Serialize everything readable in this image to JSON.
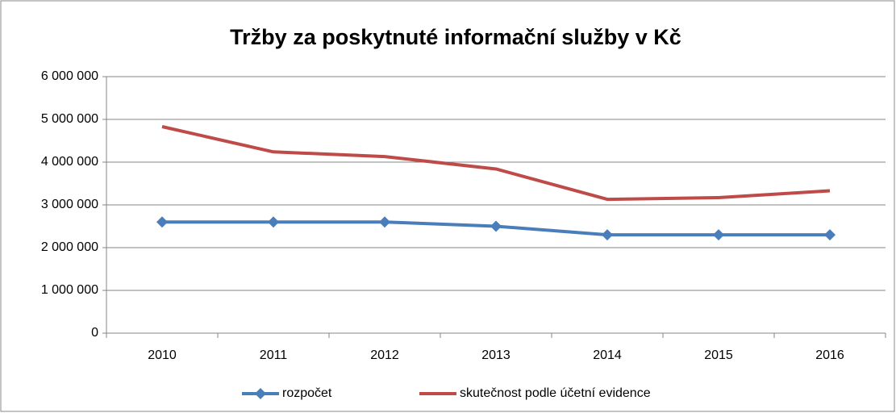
{
  "chart_data": {
    "type": "line",
    "title": "Tržby za poskytnuté informační služby v Kč",
    "categories": [
      "2010",
      "2011",
      "2012",
      "2013",
      "2014",
      "2015",
      "2016"
    ],
    "series": [
      {
        "name": "rozpočet",
        "color": "#4a7ebb",
        "values": [
          2600000,
          2600000,
          2600000,
          2500000,
          2300000,
          2300000,
          2300000
        ]
      },
      {
        "name": "skutečnost podle účetní evidence",
        "color": "#be4b48",
        "values": [
          4830000,
          4240000,
          4130000,
          3840000,
          3130000,
          3170000,
          3330000
        ]
      }
    ],
    "ylim": [
      0,
      6000000
    ],
    "yticks": [
      {
        "value": 0,
        "label": "0"
      },
      {
        "value": 1000000,
        "label": "1 000 000"
      },
      {
        "value": 2000000,
        "label": "2 000 000"
      },
      {
        "value": 3000000,
        "label": "3 000 000"
      },
      {
        "value": 4000000,
        "label": "4 000 000"
      },
      {
        "value": 5000000,
        "label": "5 000 000"
      },
      {
        "value": 6000000,
        "label": "6 000 000"
      }
    ],
    "grid": true,
    "legend": "bottom"
  }
}
